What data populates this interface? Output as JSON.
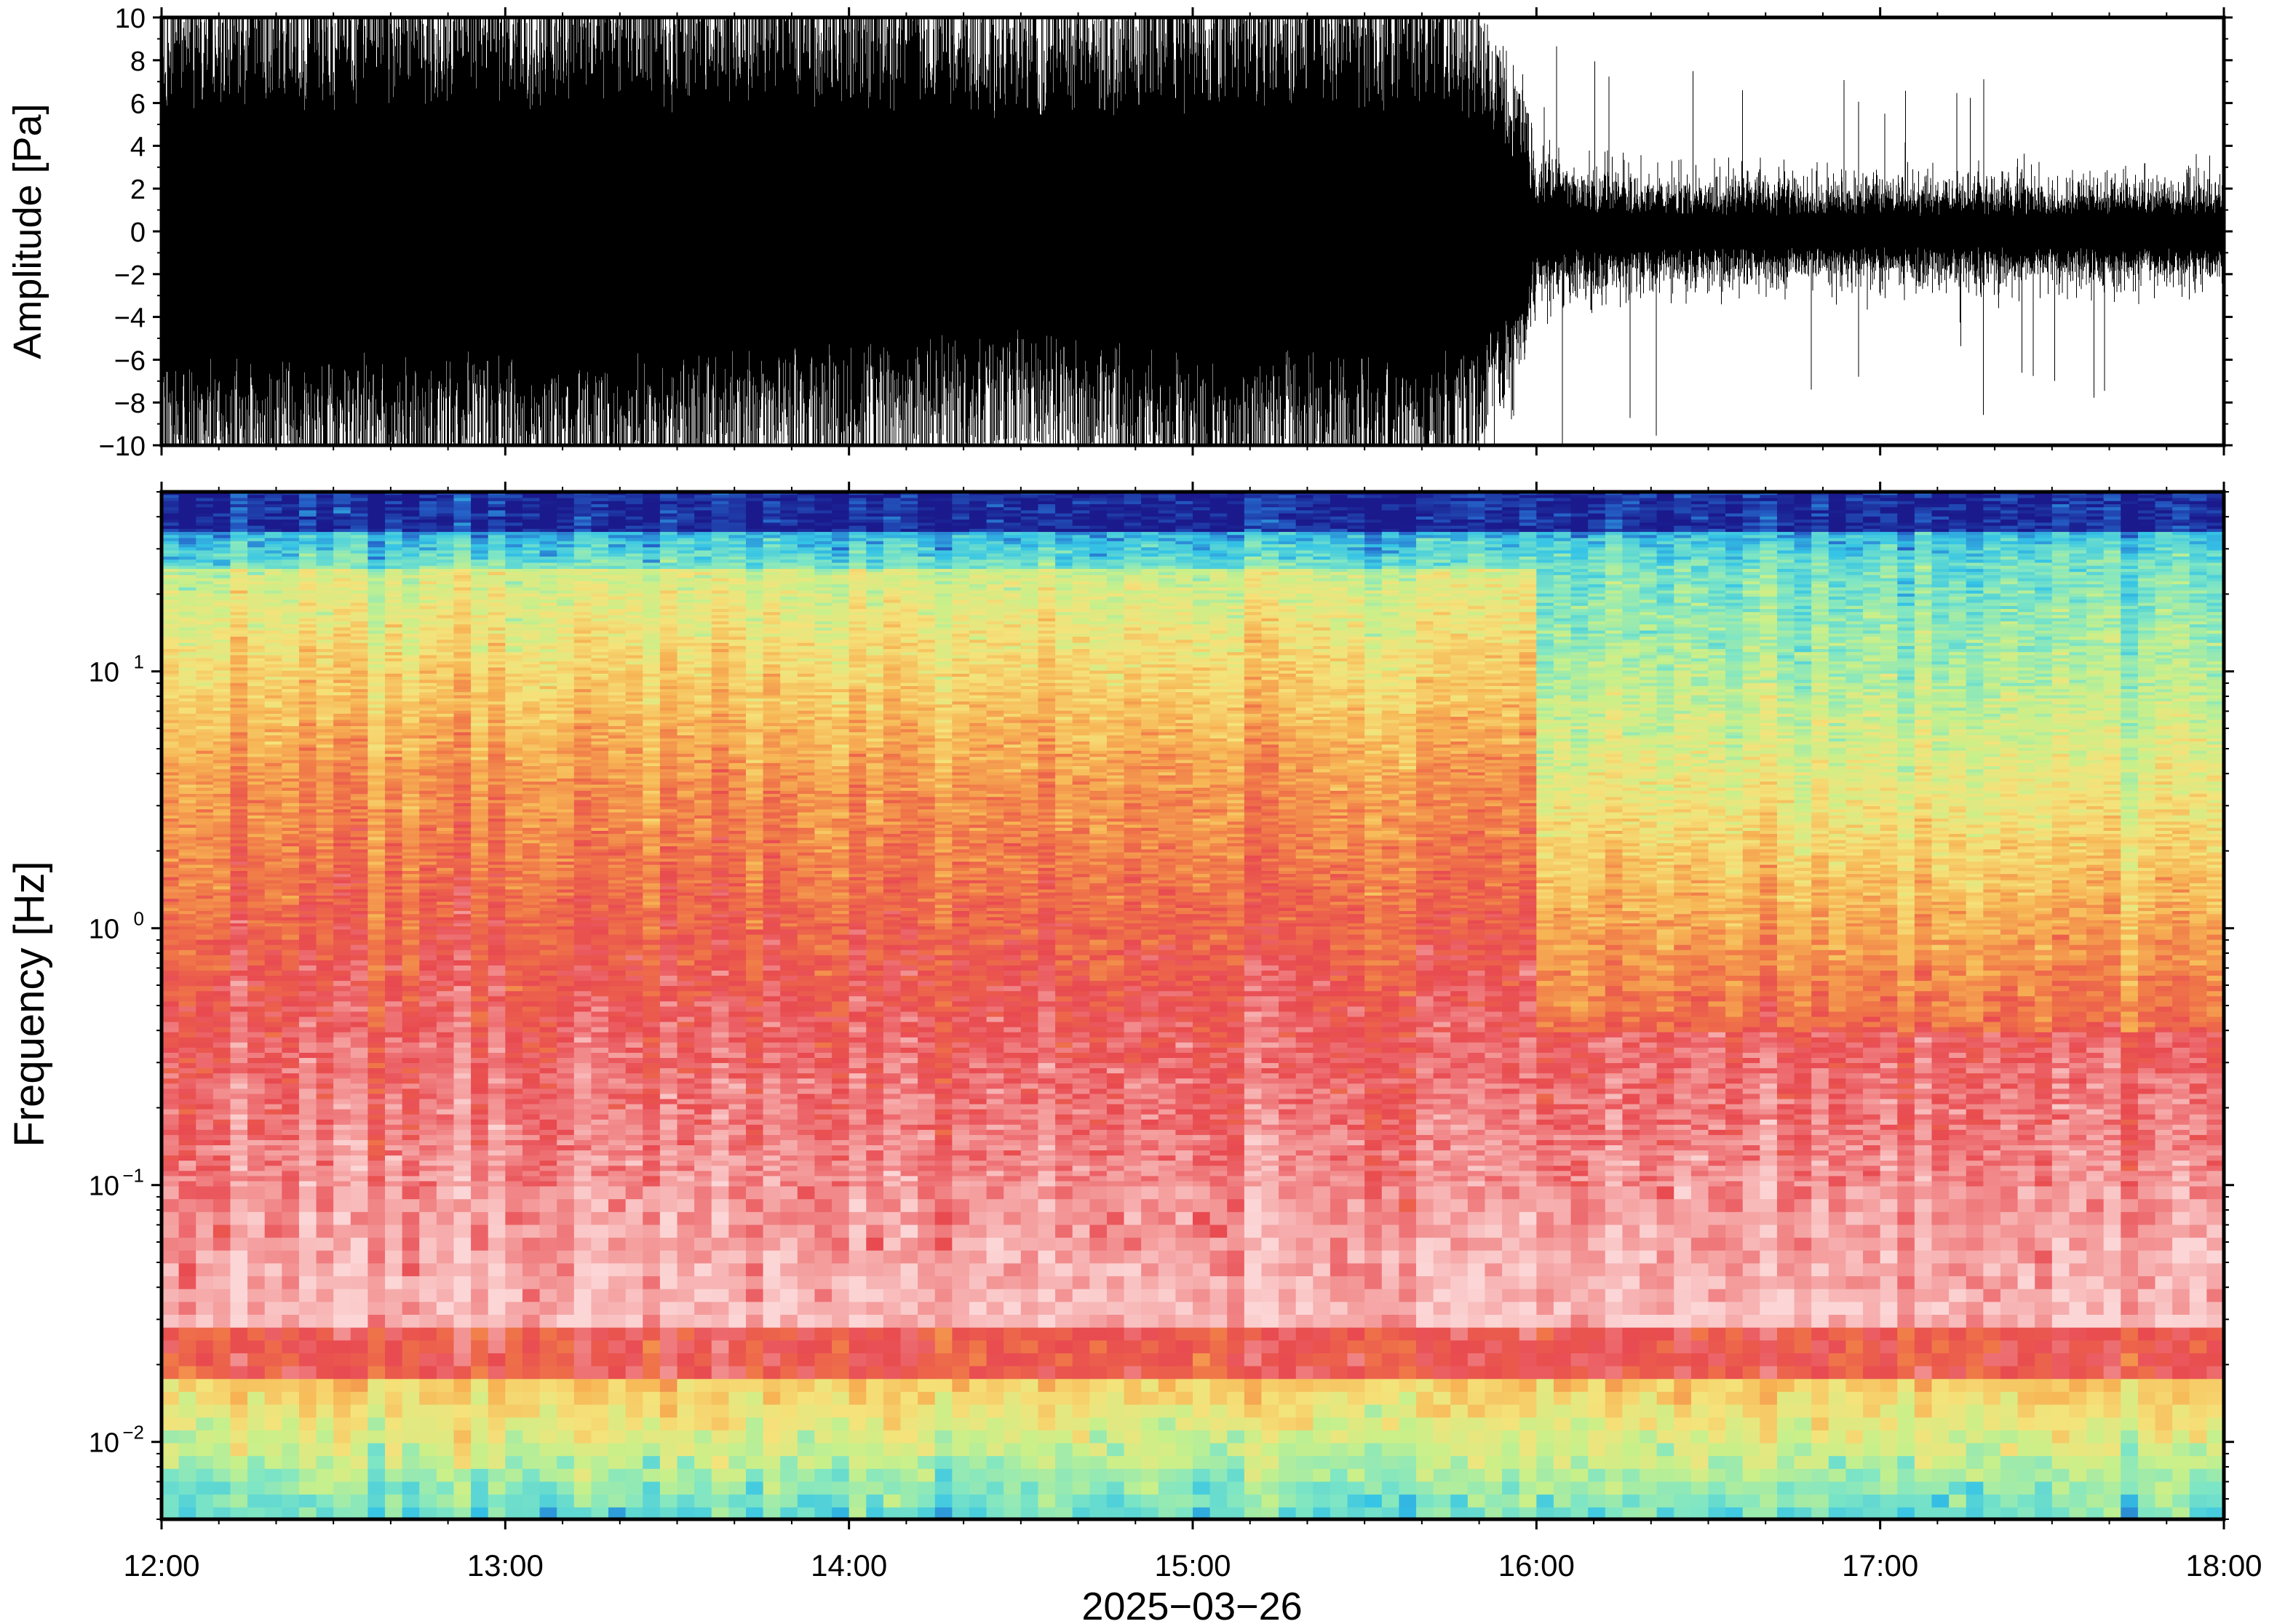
{
  "chart_data": [
    {
      "type": "line",
      "panel": "waveform",
      "ylabel": "Amplitude [Pa]",
      "ylim": [
        -10,
        10
      ],
      "yticks": [
        -10,
        -8,
        -6,
        -4,
        -2,
        0,
        2,
        4,
        6,
        8,
        10
      ],
      "ytick_labels": [
        "−10",
        "−8",
        "−6",
        "−4",
        "−2",
        "0",
        "2",
        "4",
        "6",
        "8",
        "10"
      ],
      "x_range": [
        "2025-03-26 12:00",
        "2025-03-26 18:00"
      ],
      "envelope": {
        "x": [
          "12:00",
          "12:30",
          "13:00",
          "13:30",
          "14:00",
          "14:30",
          "15:00",
          "15:30",
          "15:45",
          "15:58",
          "16:00",
          "16:30",
          "17:00",
          "17:30",
          "18:00"
        ],
        "upper": [
          10,
          10,
          10,
          10,
          10,
          9,
          10,
          10,
          10,
          5,
          2.5,
          2,
          2,
          2,
          2
        ],
        "lower": [
          -10,
          -10,
          -10,
          -10,
          -9,
          -8,
          -10,
          -10,
          -10,
          -5,
          -2.5,
          -2,
          -2,
          -2,
          -2
        ]
      },
      "line_color": "#000000"
    },
    {
      "type": "heatmap",
      "panel": "spectrogram",
      "ylabel": "Frequency [Hz]",
      "yscale": "log",
      "ylim": [
        0.005,
        50
      ],
      "yticks": [
        0.01,
        0.1,
        1,
        10
      ],
      "ytick_labels": [
        {
          "base": "10",
          "exp": "−2"
        },
        {
          "base": "10",
          "exp": "−1"
        },
        {
          "base": "10",
          "exp": "0"
        },
        {
          "base": "10",
          "exp": "1"
        }
      ],
      "xlabel": "2025−03−26",
      "xtick_labels": [
        "12:00",
        "13:00",
        "14:00",
        "15:00",
        "16:00",
        "17:00",
        "18:00"
      ],
      "colormap": "rainbow",
      "colormap_stops": [
        "#1a1a8c",
        "#2563c9",
        "#35c4e6",
        "#7fe6c4",
        "#c8f08a",
        "#f5e27a",
        "#f7b454",
        "#f07848",
        "#e84a50",
        "#f49a9a",
        "#fcd6d6"
      ],
      "note_transition_hour": 16
    }
  ]
}
